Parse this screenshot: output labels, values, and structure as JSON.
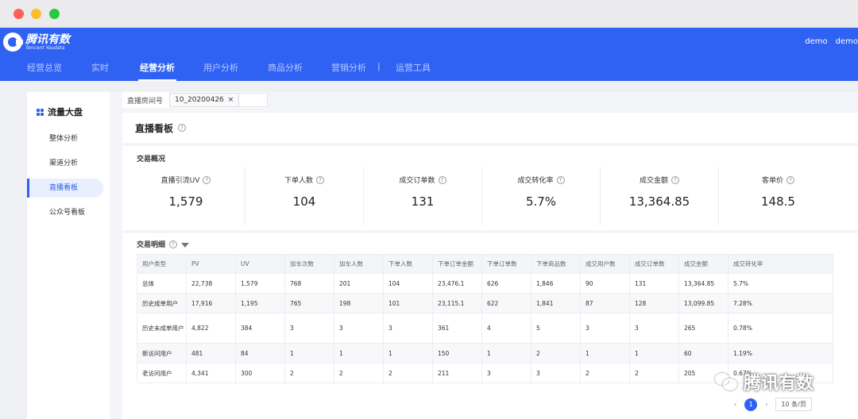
{
  "brand": {
    "name": "腾讯有数",
    "subtitle": "Tencent Youdata"
  },
  "user": {
    "items": [
      "demo",
      "demo"
    ]
  },
  "nav": [
    {
      "label": "经营总览",
      "active": false
    },
    {
      "label": "实时",
      "active": false
    },
    {
      "label": "经营分析",
      "active": true
    },
    {
      "label": "用户分析",
      "active": false
    },
    {
      "label": "商品分析",
      "active": false
    },
    {
      "label": "营销分析",
      "active": false
    },
    {
      "label": "|",
      "active": false
    },
    {
      "label": "运营工具",
      "active": false
    }
  ],
  "sidebar": {
    "title": "流量大盘",
    "items": [
      {
        "label": "整体分析",
        "active": false
      },
      {
        "label": "渠道分析",
        "active": false
      },
      {
        "label": "直播看板",
        "active": true
      },
      {
        "label": "公众号看板",
        "active": false
      }
    ]
  },
  "filter": {
    "label": "直播房间号",
    "tag": "10_20200426",
    "tag_close": "×"
  },
  "panel": {
    "title": "直播看板"
  },
  "overview": {
    "title": "交易概况",
    "kpis": [
      {
        "label": "直播引流UV",
        "value": "1,579"
      },
      {
        "label": "下单人数",
        "value": "104"
      },
      {
        "label": "成交订单数",
        "value": "131"
      },
      {
        "label": "成交转化率",
        "value": "5.7%"
      },
      {
        "label": "成交金额",
        "value": "13,364.85"
      },
      {
        "label": "客单价",
        "value": "148.5"
      }
    ]
  },
  "detail": {
    "title": "交易明细",
    "columns": [
      "用户类型",
      "PV",
      "UV",
      "加车次数",
      "加车人数",
      "下单人数",
      "下单订单金额",
      "下单订单数",
      "下单商品数",
      "成交用户数",
      "成交订单数",
      "成交金额",
      "成交转化率"
    ],
    "rows": [
      [
        "总体",
        "22,738",
        "1,579",
        "768",
        "201",
        "104",
        "23,476.1",
        "626",
        "1,846",
        "90",
        "131",
        "13,364.85",
        "5.7%"
      ],
      [
        "历史成单用户",
        "17,916",
        "1,195",
        "765",
        "198",
        "101",
        "23,115.1",
        "622",
        "1,841",
        "87",
        "128",
        "13,099.85",
        "7.28%"
      ],
      [
        "历史未成单用户",
        "4,822",
        "384",
        "3",
        "3",
        "3",
        "361",
        "4",
        "5",
        "3",
        "3",
        "265",
        "0.78%"
      ],
      [
        "新访问用户",
        "481",
        "84",
        "1",
        "1",
        "1",
        "150",
        "1",
        "2",
        "1",
        "1",
        "60",
        "1.19%"
      ],
      [
        "老访问用户",
        "4,341",
        "300",
        "2",
        "2",
        "2",
        "211",
        "3",
        "3",
        "2",
        "2",
        "205",
        "0.67%"
      ]
    ]
  },
  "pager": {
    "prev": "‹",
    "page": "1",
    "next": "›",
    "size": "10 条/页"
  },
  "watermark": {
    "text": "腾讯有数"
  },
  "colors": {
    "primary": "#2f62f3",
    "nav_bg": "#2f62f3"
  }
}
